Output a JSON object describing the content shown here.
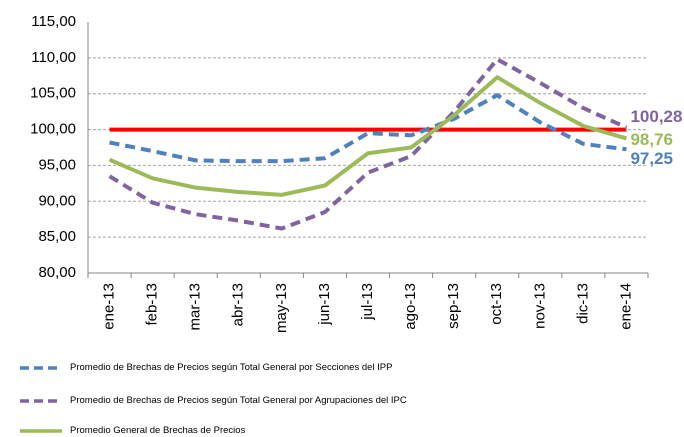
{
  "chart_data": {
    "type": "line",
    "categories": [
      "ene-13",
      "feb-13",
      "mar-13",
      "abr-13",
      "may-13",
      "jun-13",
      "jul-13",
      "ago-13",
      "sep-13",
      "oct-13",
      "nov-13",
      "dic-13",
      "ene-14"
    ],
    "series": [
      {
        "name": "Promedio de Brechas de Precios según Total General por Secciones del IPP",
        "color": "#4f81bd",
        "dash": true,
        "values": [
          98.2,
          97.0,
          95.7,
          95.6,
          95.6,
          96.0,
          99.5,
          99.2,
          101.5,
          104.8,
          101.0,
          98.0,
          97.25
        ],
        "value_labels": [
          null,
          null,
          null,
          null,
          null,
          null,
          null,
          null,
          null,
          null,
          null,
          null,
          "97,25"
        ]
      },
      {
        "name": "Promedio de Brechas de Precios según Total General por Agrupaciones del IPC",
        "color": "#8064a2",
        "dash": true,
        "values": [
          93.5,
          89.8,
          88.2,
          87.3,
          86.2,
          88.5,
          94.0,
          96.3,
          102.5,
          109.8,
          106.5,
          103.0,
          100.28
        ],
        "value_labels": [
          null,
          null,
          null,
          null,
          null,
          null,
          null,
          null,
          null,
          null,
          null,
          null,
          "100,28"
        ]
      },
      {
        "name": "Promedio General de Brechas de Precios",
        "color": "#9bbb59",
        "dash": false,
        "values": [
          95.8,
          93.2,
          91.9,
          91.3,
          90.9,
          92.2,
          96.7,
          97.5,
          102.0,
          107.3,
          103.7,
          100.5,
          98.76
        ],
        "value_labels": [
          null,
          null,
          null,
          null,
          null,
          null,
          null,
          null,
          null,
          null,
          null,
          null,
          "98,76"
        ]
      }
    ],
    "reference_line": {
      "value": 100,
      "color": "#ff0000"
    },
    "ylim": [
      80,
      115
    ],
    "yticks": [
      {
        "value": 80,
        "label": "80,00"
      },
      {
        "value": 85,
        "label": "85,00"
      },
      {
        "value": 90,
        "label": "90,00"
      },
      {
        "value": 95,
        "label": "95,00"
      },
      {
        "value": 100,
        "label": "100,00"
      },
      {
        "value": 105,
        "label": "105,00"
      },
      {
        "value": 110,
        "label": "110,00"
      },
      {
        "value": 115,
        "label": "115,00"
      }
    ],
    "grid": true,
    "legend": "bottom"
  }
}
